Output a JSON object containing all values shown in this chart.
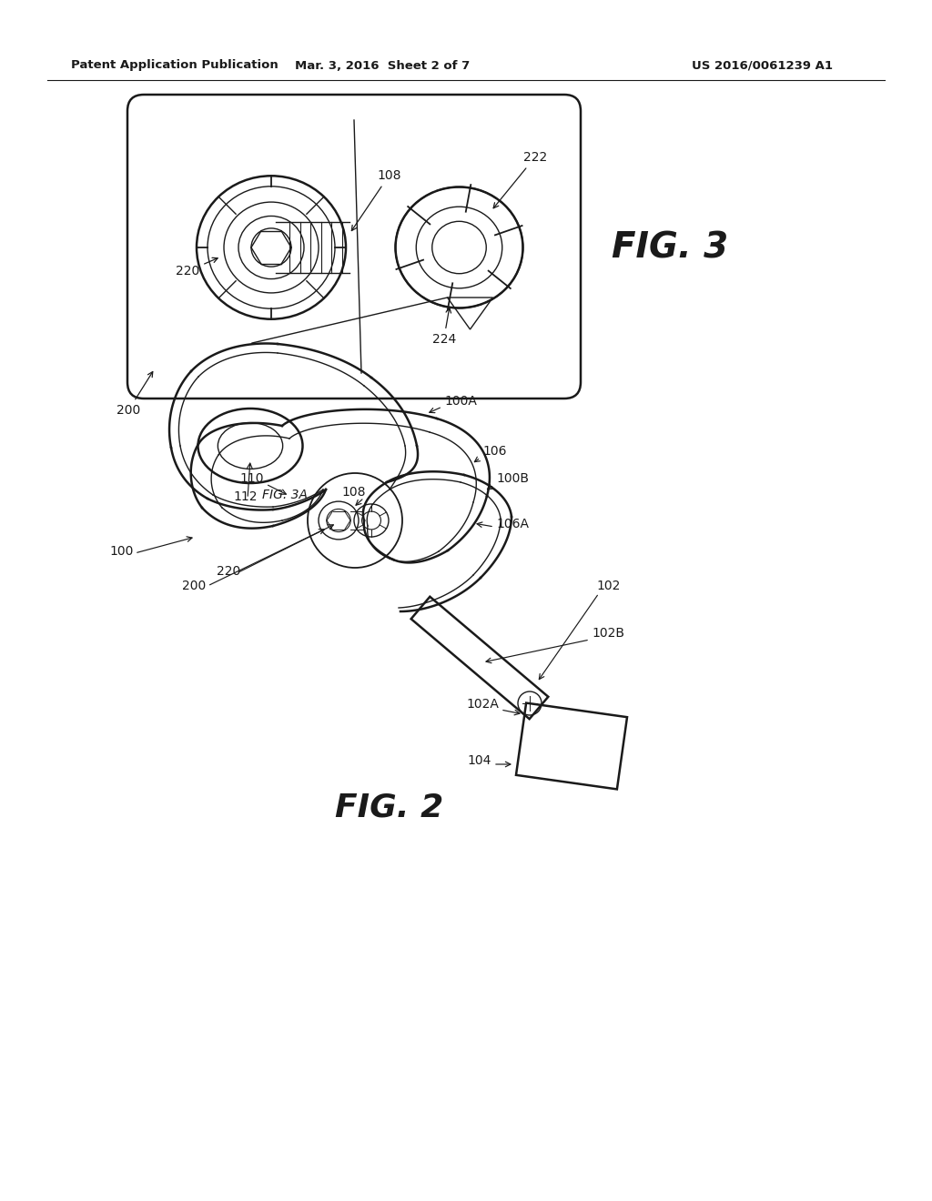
{
  "bg_color": "#ffffff",
  "header_left": "Patent Application Publication",
  "header_center": "Mar. 3, 2016  Sheet 2 of 7",
  "header_right": "US 2016/0061239 A1",
  "fig3_label": "FIG. 3",
  "fig2_label": "FIG. 2",
  "line_color": "#1a1a1a"
}
